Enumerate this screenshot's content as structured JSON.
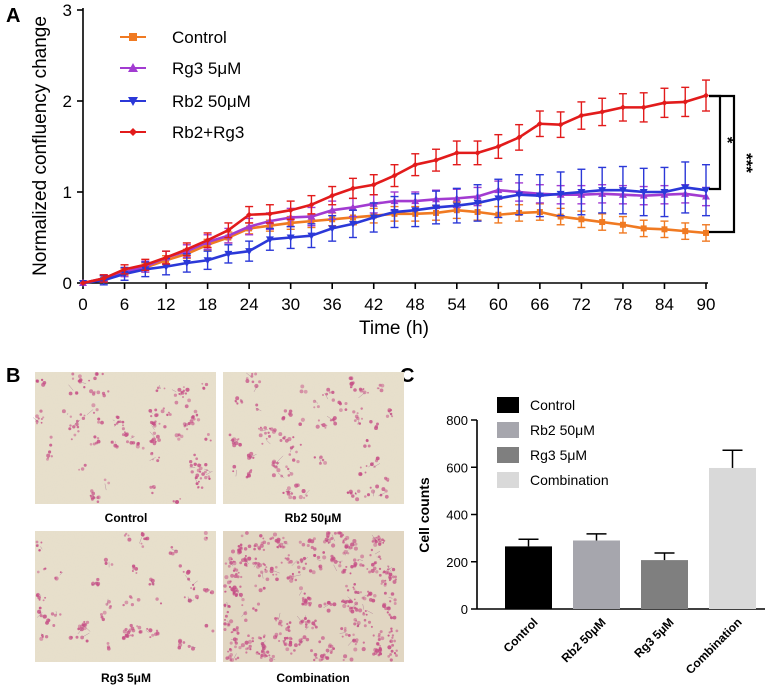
{
  "panels": {
    "a_letter": "A",
    "b_letter": "B",
    "c_letter": "C"
  },
  "chart_data": [
    {
      "type": "line",
      "title": "",
      "xlabel": "Time (h)",
      "ylabel": "Normalized confluency change",
      "xlim": [
        0,
        90
      ],
      "ylim": [
        0,
        3
      ],
      "xticks": [
        "0",
        "6",
        "12",
        "18",
        "24",
        "30",
        "36",
        "42",
        "48",
        "54",
        "60",
        "66",
        "72",
        "78",
        "84",
        "90"
      ],
      "yticks": [
        "0",
        "1",
        "2",
        "3"
      ],
      "x": [
        0,
        3,
        6,
        9,
        12,
        15,
        18,
        21,
        24,
        27,
        30,
        33,
        36,
        39,
        42,
        45,
        48,
        51,
        54,
        57,
        60,
        63,
        66,
        69,
        72,
        75,
        78,
        81,
        84,
        87,
        90
      ],
      "series": [
        {
          "name": "Control",
          "color": "#f07a22",
          "marker": "square",
          "values": [
            0,
            0.05,
            0.12,
            0.17,
            0.25,
            0.32,
            0.42,
            0.5,
            0.6,
            0.63,
            0.66,
            0.68,
            0.7,
            0.72,
            0.74,
            0.76,
            0.76,
            0.77,
            0.8,
            0.78,
            0.75,
            0.77,
            0.78,
            0.73,
            0.7,
            0.67,
            0.64,
            0.6,
            0.59,
            0.57,
            0.55
          ],
          "errors": [
            0,
            0.03,
            0.04,
            0.05,
            0.05,
            0.05,
            0.06,
            0.06,
            0.06,
            0.06,
            0.07,
            0.07,
            0.07,
            0.08,
            0.08,
            0.08,
            0.08,
            0.08,
            0.09,
            0.09,
            0.09,
            0.09,
            0.09,
            0.09,
            0.09,
            0.09,
            0.09,
            0.09,
            0.09,
            0.09,
            0.09
          ]
        },
        {
          "name": "Rg3 5μM",
          "color": "#a23bd1",
          "marker": "triangle-up",
          "values": [
            0,
            0.05,
            0.12,
            0.18,
            0.28,
            0.35,
            0.45,
            0.52,
            0.62,
            0.68,
            0.72,
            0.73,
            0.8,
            0.83,
            0.87,
            0.9,
            0.9,
            0.92,
            0.93,
            0.95,
            1.02,
            1.0,
            0.98,
            0.97,
            0.97,
            0.98,
            0.97,
            0.96,
            0.97,
            0.98,
            0.95
          ],
          "errors": [
            0,
            0.04,
            0.05,
            0.06,
            0.07,
            0.07,
            0.08,
            0.08,
            0.09,
            0.09,
            0.1,
            0.1,
            0.1,
            0.1,
            0.1,
            0.1,
            0.1,
            0.1,
            0.1,
            0.1,
            0.1,
            0.1,
            0.1,
            0.1,
            0.1,
            0.1,
            0.1,
            0.1,
            0.1,
            0.1,
            0.1
          ]
        },
        {
          "name": "Rb2 50μM",
          "color": "#2b38d8",
          "marker": "triangle-down",
          "values": [
            0,
            0.03,
            0.1,
            0.15,
            0.18,
            0.22,
            0.25,
            0.32,
            0.35,
            0.48,
            0.5,
            0.52,
            0.6,
            0.65,
            0.72,
            0.78,
            0.8,
            0.83,
            0.85,
            0.88,
            0.93,
            0.97,
            0.96,
            0.98,
            1.0,
            1.02,
            1.02,
            1.0,
            1.0,
            1.05,
            1.02
          ],
          "errors": [
            0,
            0.05,
            0.07,
            0.08,
            0.09,
            0.1,
            0.1,
            0.1,
            0.11,
            0.12,
            0.12,
            0.13,
            0.14,
            0.15,
            0.16,
            0.17,
            0.18,
            0.18,
            0.19,
            0.2,
            0.21,
            0.22,
            0.23,
            0.24,
            0.25,
            0.25,
            0.26,
            0.26,
            0.27,
            0.28,
            0.28
          ]
        },
        {
          "name": "Rb2+Rg3",
          "color": "#e21b1b",
          "marker": "diamond",
          "values": [
            0,
            0.05,
            0.15,
            0.2,
            0.28,
            0.37,
            0.47,
            0.58,
            0.75,
            0.76,
            0.8,
            0.86,
            0.96,
            1.04,
            1.08,
            1.18,
            1.3,
            1.35,
            1.43,
            1.43,
            1.5,
            1.6,
            1.75,
            1.74,
            1.84,
            1.88,
            1.93,
            1.93,
            1.98,
            1.99,
            2.06
          ],
          "errors": [
            0,
            0.04,
            0.05,
            0.06,
            0.07,
            0.07,
            0.08,
            0.08,
            0.09,
            0.1,
            0.1,
            0.1,
            0.1,
            0.11,
            0.11,
            0.12,
            0.12,
            0.12,
            0.13,
            0.13,
            0.13,
            0.14,
            0.14,
            0.14,
            0.15,
            0.15,
            0.15,
            0.16,
            0.16,
            0.16,
            0.17
          ]
        }
      ],
      "legend_position": "top-left",
      "annotations": [
        {
          "text": "*",
          "between": [
            "Rb2+Rg3",
            "Rb2 50μM"
          ]
        },
        {
          "text": "***",
          "between": [
            "Rb2+Rg3",
            "Control"
          ]
        }
      ]
    },
    {
      "type": "bar",
      "title": "",
      "xlabel": "",
      "ylabel": "Cell counts",
      "ylim": [
        0,
        800
      ],
      "yticks": [
        "0",
        "200",
        "400",
        "600",
        "800"
      ],
      "categories": [
        "Control",
        "Rb2 50μM",
        "Rg3 5μM",
        "Combination"
      ],
      "values": [
        265,
        290,
        207,
        597
      ],
      "errors": [
        30,
        28,
        30,
        75
      ],
      "colors": [
        "#000000",
        "#a6a6ad",
        "#7f7f7f",
        "#d9d9d9"
      ],
      "legend": [
        "Control",
        "Rb2 50μM",
        "Rg3 5μM",
        "Combination"
      ],
      "legend_position": "top-left"
    }
  ],
  "micrographs": {
    "captions": [
      "Control",
      "Rb2 50μM",
      "Rg3 5μM",
      "Combination"
    ],
    "densities": [
      1.0,
      1.0,
      0.8,
      2.6
    ],
    "background": "#e8e0cc",
    "stain": "#c64f86"
  }
}
